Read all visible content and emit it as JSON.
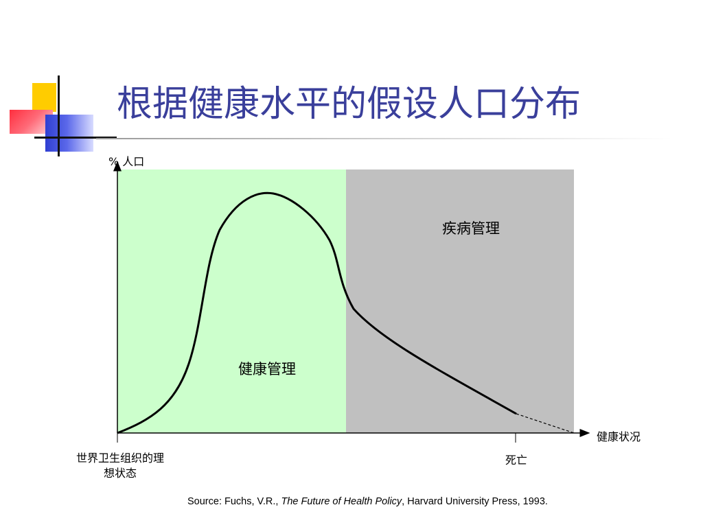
{
  "title": "根据健康水平的假设人口分布",
  "diagram": {
    "y_axis_label": "% 人口",
    "x_axis_label": "健康状况",
    "regions": [
      {
        "label": "健康管理",
        "color": "#ccffcc"
      },
      {
        "label": "疾病管理",
        "color": "#c0c0c0"
      }
    ],
    "x_ticks": [
      {
        "label": "世界卫生组织的理想状态"
      },
      {
        "label": "死亡"
      }
    ],
    "curve": {
      "style": "solid line with dashed tail",
      "color": "#000000"
    }
  },
  "source": {
    "prefix": "Source: Fuchs, V.R., ",
    "book_title": "The Future of Health Policy",
    "suffix": ", Harvard University Press, 1993."
  },
  "logo": {
    "colors": {
      "yellow": "#ffcc00",
      "red": "#ff2e3e",
      "blue": "#2f3fd2"
    }
  },
  "colors": {
    "title": "#3a3f9b"
  }
}
